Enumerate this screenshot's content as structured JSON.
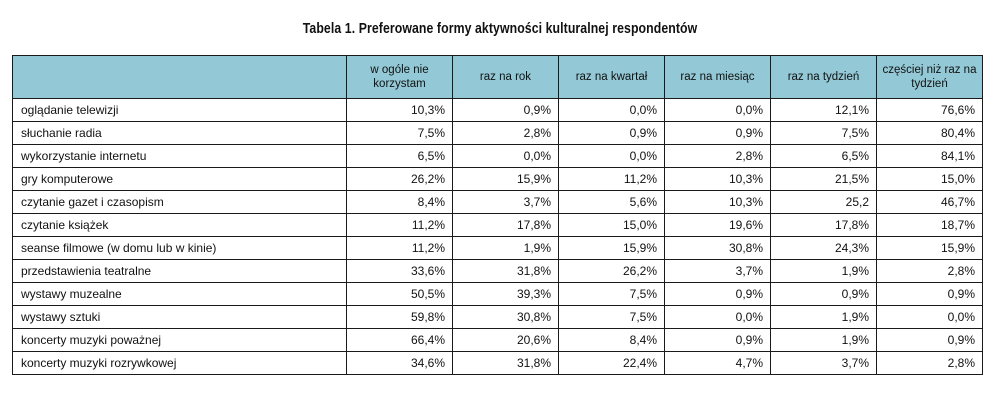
{
  "title": "Tabela 1. Preferowane formy aktywności kulturalnej respondentów",
  "columns": [
    "w ogóle nie korzystam",
    "raz na rok",
    "raz na kwartał",
    "raz na miesiąc",
    "raz na tydzień",
    "częściej niż raz na tydzień"
  ],
  "rows": [
    {
      "label": "oglądanie telewizji",
      "values": [
        "10,3%",
        "0,9%",
        "0,0%",
        "0,0%",
        "12,1%",
        "76,6%"
      ]
    },
    {
      "label": "słuchanie radia",
      "values": [
        "7,5%",
        "2,8%",
        "0,9%",
        "0,9%",
        "7,5%",
        "80,4%"
      ]
    },
    {
      "label": "wykorzystanie internetu",
      "values": [
        "6,5%",
        "0,0%",
        "0,0%",
        "2,8%",
        "6,5%",
        "84,1%"
      ]
    },
    {
      "label": "gry komputerowe",
      "values": [
        "26,2%",
        "15,9%",
        "11,2%",
        "10,3%",
        "21,5%",
        "15,0%"
      ]
    },
    {
      "label": "czytanie gazet i czasopism",
      "values": [
        "8,4%",
        "3,7%",
        "5,6%",
        "10,3%",
        "25,2",
        "46,7%"
      ]
    },
    {
      "label": "czytanie książek",
      "values": [
        "11,2%",
        "17,8%",
        "15,0%",
        "19,6%",
        "17,8%",
        "18,7%"
      ]
    },
    {
      "label": "seanse filmowe (w domu lub w kinie)",
      "values": [
        "11,2%",
        "1,9%",
        "15,9%",
        "30,8%",
        "24,3%",
        "15,9%"
      ]
    },
    {
      "label": "przedstawienia teatralne",
      "values": [
        "33,6%",
        "31,8%",
        "26,2%",
        "3,7%",
        "1,9%",
        "2,8%"
      ]
    },
    {
      "label": "wystawy muzealne",
      "values": [
        "50,5%",
        "39,3%",
        "7,5%",
        "0,9%",
        "0,9%",
        "0,9%"
      ]
    },
    {
      "label": "wystawy sztuki",
      "values": [
        "59,8%",
        "30,8%",
        "7,5%",
        "0,0%",
        "1,9%",
        "0,0%"
      ]
    },
    {
      "label": "koncerty muzyki poważnej",
      "values": [
        "66,4%",
        "20,6%",
        "8,4%",
        "0,9%",
        "1,9%",
        "0,9%"
      ]
    },
    {
      "label": "koncerty muzyki rozrywkowej",
      "values": [
        "34,6%",
        "31,8%",
        "22,4%",
        "4,7%",
        "3,7%",
        "2,8%"
      ]
    }
  ],
  "colors": {
    "header_background": "#93c9d6",
    "border": "#1a1a1a"
  }
}
